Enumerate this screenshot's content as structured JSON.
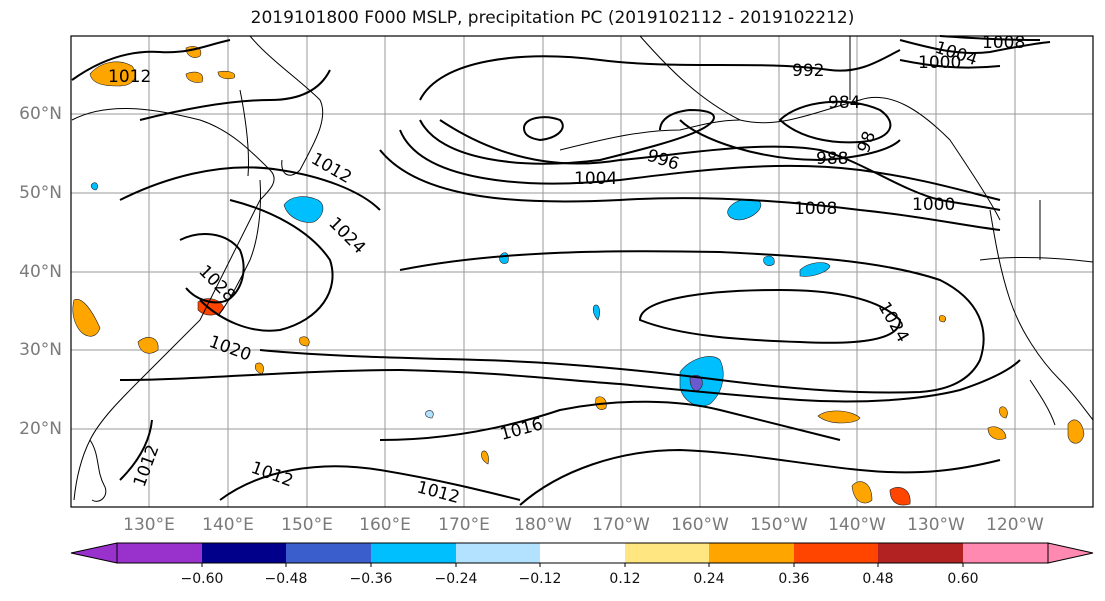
{
  "title": "2019101800 F000 MSLP, precipitation PC (2019102112 - 2019102212)",
  "map": {
    "projection": "PlateCarree",
    "lon_range": [
      120,
      250
    ],
    "lat_range": [
      10,
      70
    ],
    "lat_ticks": [
      "60°N",
      "50°N",
      "40°N",
      "30°N",
      "20°N"
    ],
    "lon_ticks": [
      "130°E",
      "140°E",
      "150°E",
      "160°E",
      "170°E",
      "180°W",
      "170°W",
      "160°W",
      "150°W",
      "140°W",
      "130°W",
      "120°W"
    ],
    "grid": true,
    "contour_color": "#000000",
    "contour_labels": [
      "1012",
      "1004",
      "1008",
      "1000",
      "992",
      "984",
      "988",
      "996",
      "98",
      "1004",
      "1008",
      "1000",
      "1012",
      "1024",
      "1028",
      "1020",
      "1024",
      "1016",
      "1012",
      "1012",
      "1012"
    ]
  },
  "colorbar": {
    "ticks": [
      "−0.60",
      "−0.48",
      "−0.36",
      "−0.24",
      "−0.12",
      "0.12",
      "0.24",
      "0.36",
      "0.48",
      "0.60"
    ],
    "colors": [
      "#9932cc",
      "#00008b",
      "#3a5fcd",
      "#00bfff",
      "#b2e2ff",
      "#ffffff",
      "#ffe680",
      "#ffa500",
      "#ff4500",
      "#b22222",
      "#ff89b0"
    ],
    "extend": "both"
  },
  "precip_colors": {
    "neg_light": "#b2e2ff",
    "neg_mid": "#00bfff",
    "neg_strong": "#6a5acd",
    "pos_light": "#ffe680",
    "pos_mid": "#ffa500",
    "pos_strong": "#ff4500"
  }
}
